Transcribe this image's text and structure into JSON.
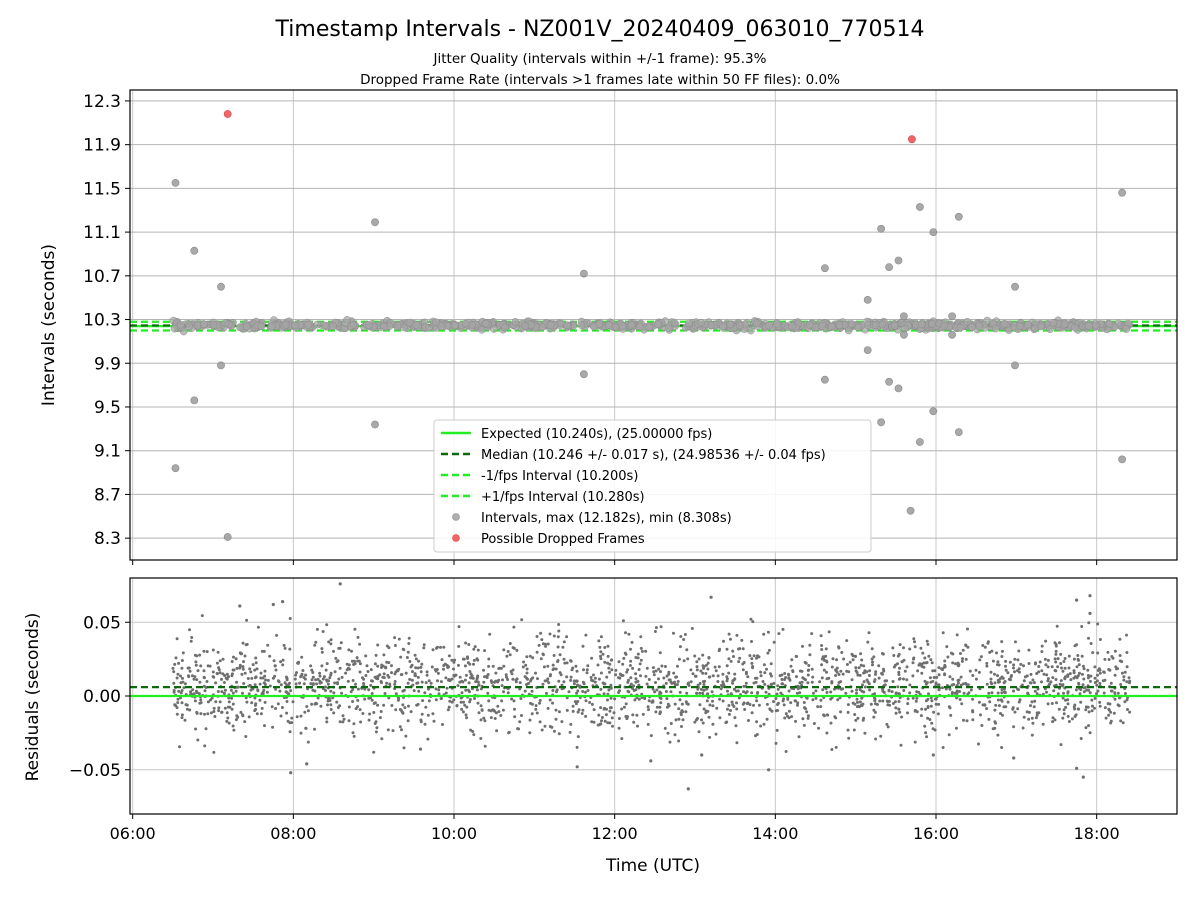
{
  "chart_data": [
    {
      "type": "scatter",
      "title": "Timestamp Intervals - NZ001V_20240409_063010_770514",
      "subtitle_lines": [
        "Jitter Quality (intervals within +/-1 frame): 95.3%",
        "Dropped Frame Rate (intervals >1 frames late within 50 FF files): 0.0%"
      ],
      "xlabel": "",
      "ylabel": "Intervals (seconds)",
      "xlim": [
        "05:58",
        "19:00"
      ],
      "ylim": [
        8.1,
        12.4
      ],
      "yticks": [
        8.3,
        8.7,
        9.1,
        9.5,
        9.9,
        10.3,
        10.7,
        11.1,
        11.5,
        11.9,
        12.3
      ],
      "grid": true,
      "legend_position": "lower-center",
      "reference_lines": [
        {
          "name": "Expected (10.240s), (25.00000 fps)",
          "y": 10.24,
          "style": "solid",
          "color": "#22ee22"
        },
        {
          "name": "Median (10.246 +/- 0.017 s), (24.98536 +/- 0.04 fps)",
          "y": 10.246,
          "style": "dashed",
          "color": "#0a6b0a"
        },
        {
          "name": "-1/fps Interval (10.200s)",
          "y": 10.2,
          "style": "dashed",
          "color": "#22ee22"
        },
        {
          "name": "+1/fps Interval (10.280s)",
          "y": 10.28,
          "style": "dashed",
          "color": "#22ee22"
        }
      ],
      "series": [
        {
          "name": "Intervals, max (12.182s), min (8.308s)",
          "color": "#9a9a9a",
          "points": [
            [
              "06:32",
              11.55
            ],
            [
              "06:32",
              8.94
            ],
            [
              "06:46",
              10.93
            ],
            [
              "06:46",
              9.56
            ],
            [
              "07:06",
              10.6
            ],
            [
              "07:06",
              9.88
            ],
            [
              "07:11",
              8.31
            ],
            [
              "09:01",
              11.19
            ],
            [
              "09:01",
              9.34
            ],
            [
              "11:37",
              10.72
            ],
            [
              "11:37",
              9.8
            ],
            [
              "14:37",
              10.77
            ],
            [
              "14:37",
              9.75
            ],
            [
              "15:09",
              10.48
            ],
            [
              "15:09",
              10.02
            ],
            [
              "15:19",
              11.13
            ],
            [
              "15:19",
              9.36
            ],
            [
              "15:25",
              10.78
            ],
            [
              "15:25",
              9.73
            ],
            [
              "15:32",
              10.84
            ],
            [
              "15:32",
              9.67
            ],
            [
              "15:36",
              10.33
            ],
            [
              "15:36",
              10.16
            ],
            [
              "15:41",
              8.55
            ],
            [
              "15:48",
              11.33
            ],
            [
              "15:48",
              9.18
            ],
            [
              "15:58",
              11.1
            ],
            [
              "15:58",
              9.46
            ],
            [
              "16:12",
              10.33
            ],
            [
              "16:12",
              10.16
            ],
            [
              "16:17",
              11.24
            ],
            [
              "16:17",
              9.27
            ],
            [
              "16:59",
              10.6
            ],
            [
              "16:59",
              9.88
            ],
            [
              "18:19",
              11.46
            ],
            [
              "18:19",
              9.02
            ]
          ]
        },
        {
          "name": "Possible Dropped Frames",
          "color": "#ee5555",
          "points": [
            [
              "07:11",
              12.18
            ],
            [
              "15:42",
              11.95
            ]
          ]
        }
      ]
    },
    {
      "type": "scatter",
      "xlabel": "Time (UTC)",
      "ylabel": "Residuals (seconds)",
      "xlim": [
        "05:58",
        "19:00"
      ],
      "ylim": [
        -0.08,
        0.08
      ],
      "xticks": [
        "06:00",
        "08:00",
        "10:00",
        "12:00",
        "14:00",
        "16:00",
        "18:00"
      ],
      "yticks": [
        -0.05,
        0.0,
        0.05
      ],
      "ytick_labels": [
        "−0.05",
        "0.00",
        "0.05"
      ],
      "grid": true,
      "reference_lines": [
        {
          "name": "Expected",
          "y": 0.0,
          "style": "solid",
          "color": "#22ee22"
        },
        {
          "name": "Median",
          "y": 0.006,
          "style": "dashed",
          "color": "#0a6b0a"
        }
      ],
      "series": [
        {
          "name": "Residuals",
          "color": "#6f6f6f",
          "x_range": [
            "06:30",
            "18:25"
          ],
          "center": 0.007,
          "spread_sd": 0.016,
          "points": [
            [
              "08:35",
              0.076
            ],
            [
              "17:55",
              0.068
            ],
            [
              "13:12",
              0.067
            ],
            [
              "17:45",
              0.065
            ],
            [
              "07:52",
              0.064
            ],
            [
              "07:20",
              0.061
            ],
            [
              "07:45",
              0.062
            ],
            [
              "17:55",
              0.056
            ],
            [
              "12:55",
              -0.063
            ],
            [
              "11:32",
              -0.048
            ],
            [
              "13:55",
              -0.05
            ],
            [
              "17:45",
              -0.049
            ],
            [
              "17:50",
              -0.055
            ],
            [
              "07:58",
              -0.052
            ],
            [
              "08:10",
              -0.046
            ],
            [
              "12:27",
              -0.044
            ],
            [
              "13:05",
              -0.04
            ],
            [
              "15:58",
              -0.04
            ],
            [
              "16:58",
              -0.042
            ],
            [
              "09:35",
              -0.036
            ]
          ]
        }
      ]
    }
  ]
}
